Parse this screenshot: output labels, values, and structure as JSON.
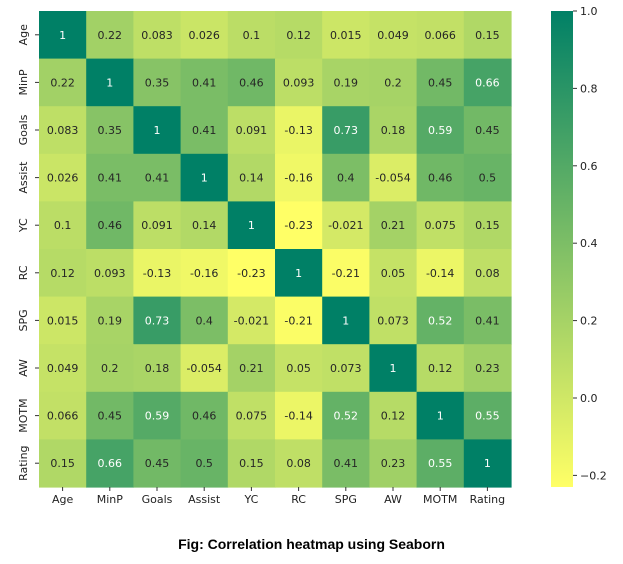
{
  "chart_data": {
    "type": "heatmap",
    "title": "",
    "xlabel": "",
    "ylabel": "",
    "labels": [
      "Age",
      "MinP",
      "Goals",
      "Assist",
      "YC",
      "RC",
      "SPG",
      "AW",
      "MOTM",
      "Rating"
    ],
    "matrix": [
      [
        "1",
        "0.22",
        "0.083",
        "0.026",
        "0.1",
        "0.12",
        "0.015",
        "0.049",
        "0.066",
        "0.15"
      ],
      [
        "0.22",
        "1",
        "0.35",
        "0.41",
        "0.46",
        "0.093",
        "0.19",
        "0.2",
        "0.45",
        "0.66"
      ],
      [
        "0.083",
        "0.35",
        "1",
        "0.41",
        "0.091",
        "-0.13",
        "0.73",
        "0.18",
        "0.59",
        "0.45"
      ],
      [
        "0.026",
        "0.41",
        "0.41",
        "1",
        "0.14",
        "-0.16",
        "0.4",
        "-0.054",
        "0.46",
        "0.5"
      ],
      [
        "0.1",
        "0.46",
        "0.091",
        "0.14",
        "1",
        "-0.23",
        "-0.021",
        "0.21",
        "0.075",
        "0.15"
      ],
      [
        "0.12",
        "0.093",
        "-0.13",
        "-0.16",
        "-0.23",
        "1",
        "-0.21",
        "0.05",
        "-0.14",
        "0.08"
      ],
      [
        "0.015",
        "0.19",
        "0.73",
        "0.4",
        "-0.021",
        "-0.21",
        "1",
        "0.073",
        "0.52",
        "0.41"
      ],
      [
        "0.049",
        "0.2",
        "0.18",
        "-0.054",
        "0.21",
        "0.05",
        "0.073",
        "1",
        "0.12",
        "0.23"
      ],
      [
        "0.066",
        "0.45",
        "0.59",
        "0.46",
        "0.075",
        "-0.14",
        "0.52",
        "0.12",
        "1",
        "0.55"
      ],
      [
        "0.15",
        "0.66",
        "0.45",
        "0.5",
        "0.15",
        "0.08",
        "0.41",
        "0.23",
        "0.55",
        "1"
      ]
    ],
    "colormap": "summer_r",
    "colors": {
      "low": "#ffff66",
      "high": "#008066"
    },
    "value_range": [
      -0.23,
      1
    ],
    "colorbar_ticks": [
      "1.0",
      "0.8",
      "0.6",
      "0.4",
      "0.2",
      "0.0",
      "−0.2"
    ],
    "annotations": "cell values shown"
  },
  "caption": "Fig: Correlation heatmap using Seaborn"
}
